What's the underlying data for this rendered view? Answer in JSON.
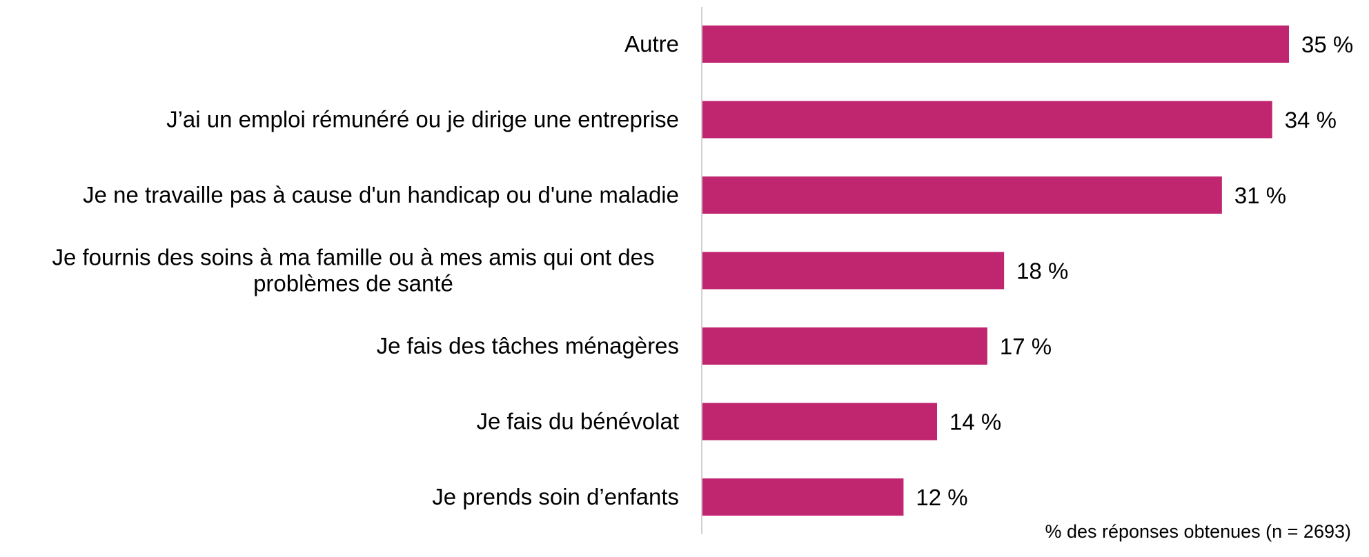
{
  "chart_data": {
    "type": "bar",
    "orientation": "horizontal",
    "categories": [
      [
        "Autre"
      ],
      [
        "J’ai un emploi rémunéré ou je dirige une entreprise"
      ],
      [
        "Je ne travaille pas à cause d'un handicap ou d'une maladie"
      ],
      [
        "Je fournis des soins à ma famille ou à mes amis qui ont des",
        "problèmes de santé"
      ],
      [
        "Je fais des tâches ménagères"
      ],
      [
        "Je fais du bénévolat"
      ],
      [
        "Je prends soin d’enfants"
      ]
    ],
    "values": [
      35,
      34,
      31,
      18,
      17,
      14,
      12
    ],
    "data_labels": [
      "35 %",
      "34 %",
      "31 %",
      "18 %",
      "17 %",
      "14 %",
      "12 %"
    ],
    "unit": "%",
    "xlabel": "% des réponses obtenues (n = 2693)",
    "xlim": [
      0,
      35
    ],
    "grid": false,
    "legend": "none",
    "colors": {
      "bar": "#C0256F",
      "axis": "#D0D0D0",
      "text": "#000000"
    }
  }
}
